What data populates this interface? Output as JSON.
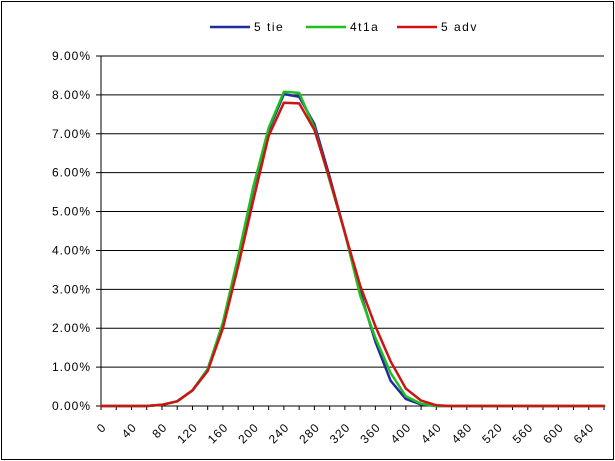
{
  "chart_data": {
    "type": "line",
    "title": "",
    "xlabel": "",
    "ylabel": "",
    "xlim": [
      0,
      660
    ],
    "ylim": [
      0,
      0.09
    ],
    "y_ticks": [
      "0.00%",
      "1.00%",
      "2.00%",
      "3.00%",
      "4.00%",
      "5.00%",
      "6.00%",
      "7.00%",
      "8.00%",
      "9.00%"
    ],
    "x_ticks": [
      "0",
      "40",
      "80",
      "120",
      "160",
      "200",
      "240",
      "280",
      "320",
      "360",
      "400",
      "440",
      "480",
      "520",
      "560",
      "600",
      "640"
    ],
    "grid": "horizontal",
    "legend_position": "top",
    "x": [
      0,
      20,
      40,
      60,
      80,
      100,
      120,
      140,
      160,
      180,
      200,
      220,
      240,
      260,
      280,
      300,
      320,
      340,
      360,
      380,
      400,
      420,
      440,
      460,
      480,
      500,
      520,
      540,
      560,
      580,
      600,
      620,
      640,
      660
    ],
    "series": [
      {
        "name": "5 tie",
        "color": "#1f2a9c",
        "values": [
          0,
          0,
          0,
          0,
          0.0003,
          0.0012,
          0.004,
          0.0095,
          0.021,
          0.038,
          0.056,
          0.071,
          0.0802,
          0.0795,
          0.0725,
          0.059,
          0.0445,
          0.0295,
          0.0165,
          0.0065,
          0.0018,
          0.0004,
          0,
          0,
          0,
          0,
          0,
          0,
          0,
          0,
          0,
          0,
          0,
          0
        ]
      },
      {
        "name": "4t1a",
        "color": "#1fbf1f",
        "values": [
          0,
          0,
          0,
          0,
          0.0003,
          0.0012,
          0.004,
          0.0095,
          0.0215,
          0.0385,
          0.0565,
          0.0715,
          0.0808,
          0.0805,
          0.0715,
          0.058,
          0.0445,
          0.0285,
          0.0175,
          0.0085,
          0.0025,
          0.0006,
          0,
          0,
          0,
          0,
          0,
          0,
          0,
          0,
          0,
          0,
          0,
          0
        ]
      },
      {
        "name": "5 adv",
        "color": "#cc1414",
        "values": [
          0,
          0,
          0,
          0,
          0.0003,
          0.0012,
          0.004,
          0.009,
          0.02,
          0.036,
          0.053,
          0.0695,
          0.078,
          0.0778,
          0.071,
          0.0585,
          0.0445,
          0.031,
          0.0205,
          0.0115,
          0.0045,
          0.0014,
          0.0002,
          0,
          0,
          0,
          0,
          0,
          0,
          0,
          0,
          0,
          0,
          0
        ]
      }
    ]
  }
}
